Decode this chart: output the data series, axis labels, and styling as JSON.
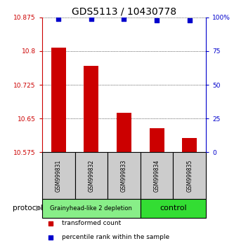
{
  "title": "GDS5113 / 10430778",
  "samples": [
    "GSM999831",
    "GSM999832",
    "GSM999833",
    "GSM999834",
    "GSM999835"
  ],
  "bar_values": [
    10.808,
    10.768,
    10.663,
    10.628,
    10.607
  ],
  "percentile_values": [
    99,
    99,
    99,
    98,
    98
  ],
  "ymin": 10.575,
  "ymax": 10.875,
  "yticks": [
    10.575,
    10.65,
    10.725,
    10.8,
    10.875
  ],
  "ytick_labels": [
    "10.575",
    "10.65",
    "10.725",
    "10.8",
    "10.875"
  ],
  "right_yticks": [
    0,
    25,
    50,
    75,
    100
  ],
  "right_ytick_labels": [
    "0",
    "25",
    "50",
    "75",
    "100%"
  ],
  "bar_color": "#cc0000",
  "dot_color": "#0000cc",
  "groups": [
    {
      "label": "Grainyhead-like 2 depletion",
      "indices": [
        0,
        1,
        2
      ],
      "color": "#88ee88",
      "text_size": 6
    },
    {
      "label": "control",
      "indices": [
        3,
        4
      ],
      "color": "#33dd33",
      "text_size": 8
    }
  ],
  "protocol_label": "protocol",
  "legend_bar_label": "transformed count",
  "legend_dot_label": "percentile rank within the sample",
  "title_fontsize": 10,
  "axis_label_color_left": "#cc0000",
  "axis_label_color_right": "#0000cc",
  "bar_width": 0.45
}
